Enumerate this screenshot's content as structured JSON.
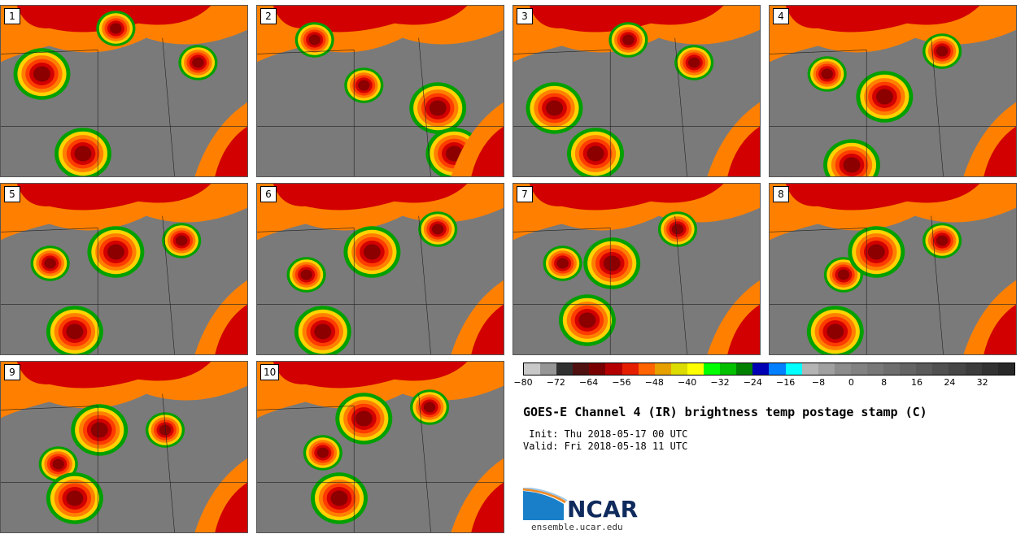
{
  "panels": [
    {
      "label": "1",
      "cells": [
        [
          14,
          2
        ],
        [
          5,
          6
        ],
        [
          24,
          5
        ],
        [
          10,
          13
        ]
      ]
    },
    {
      "label": "2",
      "cells": [
        [
          13,
          7
        ],
        [
          22,
          9
        ],
        [
          7,
          3
        ],
        [
          24,
          13
        ]
      ]
    },
    {
      "label": "3",
      "cells": [
        [
          14,
          3
        ],
        [
          5,
          9
        ],
        [
          22,
          5
        ],
        [
          10,
          13
        ]
      ]
    },
    {
      "label": "4",
      "cells": [
        [
          7,
          6
        ],
        [
          14,
          8
        ],
        [
          21,
          4
        ],
        [
          10,
          14
        ]
      ]
    },
    {
      "label": "5",
      "cells": [
        [
          6,
          7
        ],
        [
          14,
          6
        ],
        [
          22,
          5
        ],
        [
          9,
          13
        ]
      ]
    },
    {
      "label": "6",
      "cells": [
        [
          6,
          8
        ],
        [
          14,
          6
        ],
        [
          22,
          4
        ],
        [
          8,
          13
        ]
      ]
    },
    {
      "label": "7",
      "cells": [
        [
          6,
          7
        ],
        [
          12,
          7
        ],
        [
          20,
          4
        ],
        [
          9,
          12
        ]
      ]
    },
    {
      "label": "8",
      "cells": [
        [
          9,
          8
        ],
        [
          13,
          6
        ],
        [
          21,
          5
        ],
        [
          8,
          13
        ]
      ]
    },
    {
      "label": "9",
      "cells": [
        [
          7,
          9
        ],
        [
          12,
          6
        ],
        [
          20,
          6
        ],
        [
          9,
          12
        ]
      ]
    },
    {
      "label": "10",
      "cells": [
        [
          8,
          8
        ],
        [
          13,
          5
        ],
        [
          21,
          4
        ],
        [
          10,
          12
        ]
      ]
    }
  ],
  "colorbar": {
    "colors": [
      "#c8c8c8",
      "#969696",
      "#303030",
      "#501010",
      "#780000",
      "#b40000",
      "#e61e00",
      "#ff6400",
      "#e6a000",
      "#dcdc00",
      "#ffff00",
      "#00ff00",
      "#00c000",
      "#008000",
      "#0000b4",
      "#0080ff",
      "#00ffff",
      "#b4b4b4",
      "#a0a0a0",
      "#8c8c8c",
      "#828282",
      "#787878",
      "#6e6e6e",
      "#646464",
      "#5a5a5a",
      "#505050",
      "#464646",
      "#3c3c3c",
      "#323232",
      "#282828"
    ],
    "ticks": [
      "−80",
      "−72",
      "−64",
      "−56",
      "−48",
      "−40",
      "−32",
      "−24",
      "−16",
      "−8",
      "0",
      "8",
      "16",
      "24",
      "32"
    ]
  },
  "title": "GOES-E Channel 4 (IR) brightness temp postage stamp (C)",
  "init": " Init: Thu 2018-05-17 00 UTC",
  "valid": "Valid: Fri 2018-05-18 11 UTC",
  "logo": {
    "text": "NCAR",
    "site": "ensemble.ucar.edu"
  }
}
